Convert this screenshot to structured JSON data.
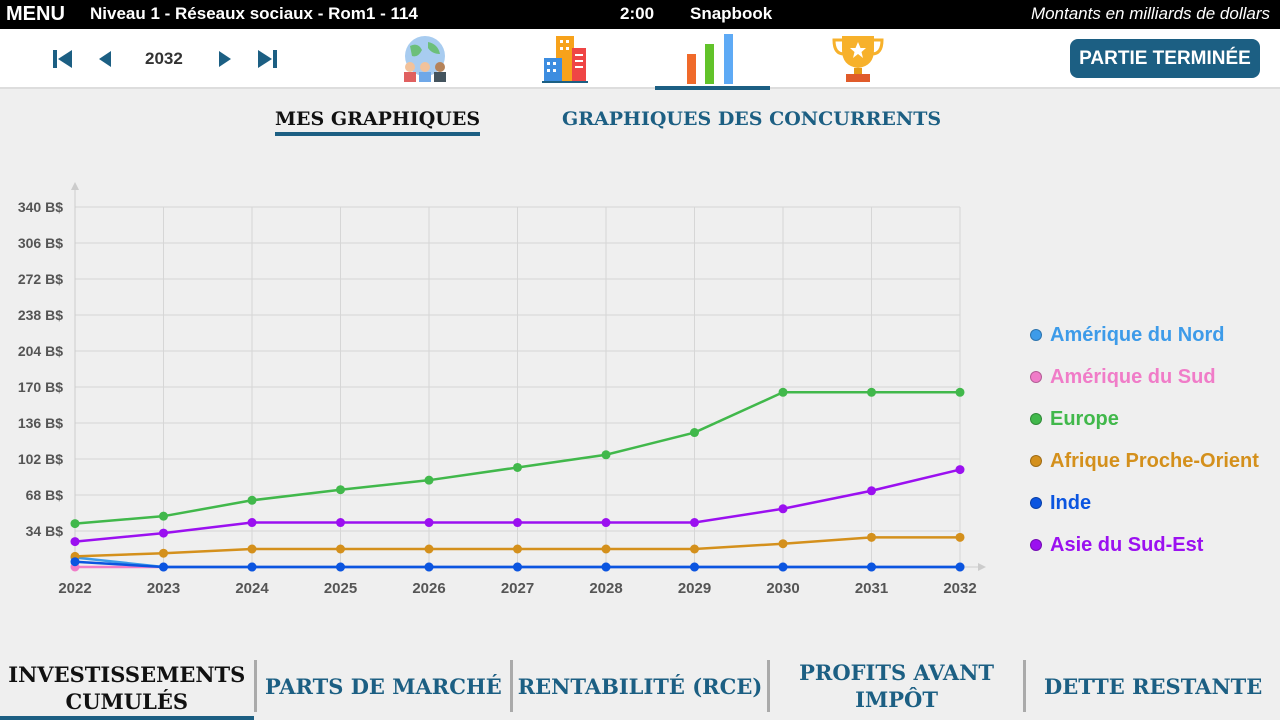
{
  "topbar": {
    "menu": "MENU",
    "level": "Niveau 1 - Réseaux sociaux - Rom1 - 114",
    "time": "2:00",
    "company": "Snapbook",
    "units": "Montants en milliards de dollars"
  },
  "nav": {
    "year": "2032",
    "finish": "PARTIE TERMINÉE",
    "icons": [
      "first-icon",
      "prev-icon",
      "next-icon",
      "last-icon",
      "world-people-icon",
      "city-icon",
      "bar-chart-icon",
      "trophy-icon"
    ]
  },
  "subtabs": {
    "mine": "MES GRAPHIQUES",
    "competitors": "GRAPHIQUES DES CONCURRENTS"
  },
  "bottom_tabs": [
    {
      "l1": "INVESTISSEMENTS",
      "l2": "CUMULÉS"
    },
    {
      "l1": "PARTS DE MARCHÉ",
      "l2": ""
    },
    {
      "l1": "RENTABILITÉ (RCE)",
      "l2": ""
    },
    {
      "l1": "PROFITS AVANT",
      "l2": "IMPÔT"
    },
    {
      "l1": "DETTE RESTANTE",
      "l2": ""
    }
  ],
  "chart_data": {
    "type": "line",
    "x": [
      "2022",
      "2023",
      "2024",
      "2025",
      "2026",
      "2027",
      "2028",
      "2029",
      "2030",
      "2031",
      "2032"
    ],
    "ylim": [
      0,
      340
    ],
    "yticks": [
      "34 B$",
      "68 B$",
      "102 B$",
      "136 B$",
      "170 B$",
      "204 B$",
      "238 B$",
      "272 B$",
      "306 B$",
      "340 B$"
    ],
    "ytick_values": [
      34,
      68,
      102,
      136,
      170,
      204,
      238,
      272,
      306,
      340
    ],
    "grid": true,
    "legend": "right",
    "series": [
      {
        "name": "Amérique du Nord",
        "color": "#3d9be9",
        "values": [
          9,
          0,
          0,
          0,
          0,
          0,
          0,
          0,
          0,
          0,
          0
        ]
      },
      {
        "name": "Amérique du Sud",
        "color": "#f07cc8",
        "values": [
          0,
          0,
          0,
          0,
          0,
          0,
          0,
          0,
          0,
          0,
          0
        ]
      },
      {
        "name": "Europe",
        "color": "#41b84b",
        "values": [
          41,
          48,
          63,
          73,
          82,
          94,
          106,
          127,
          165,
          165,
          165
        ]
      },
      {
        "name": "Afrique Proche-Orient",
        "color": "#d4901c",
        "values": [
          10,
          13,
          17,
          17,
          17,
          17,
          17,
          17,
          22,
          28,
          28
        ]
      },
      {
        "name": "Inde",
        "color": "#0b55e0",
        "values": [
          5,
          0,
          0,
          0,
          0,
          0,
          0,
          0,
          0,
          0,
          0
        ]
      },
      {
        "name": "Asie du Sud-Est",
        "color": "#9b10f0",
        "values": [
          24,
          32,
          42,
          42,
          42,
          42,
          42,
          42,
          55,
          72,
          92
        ]
      }
    ]
  }
}
